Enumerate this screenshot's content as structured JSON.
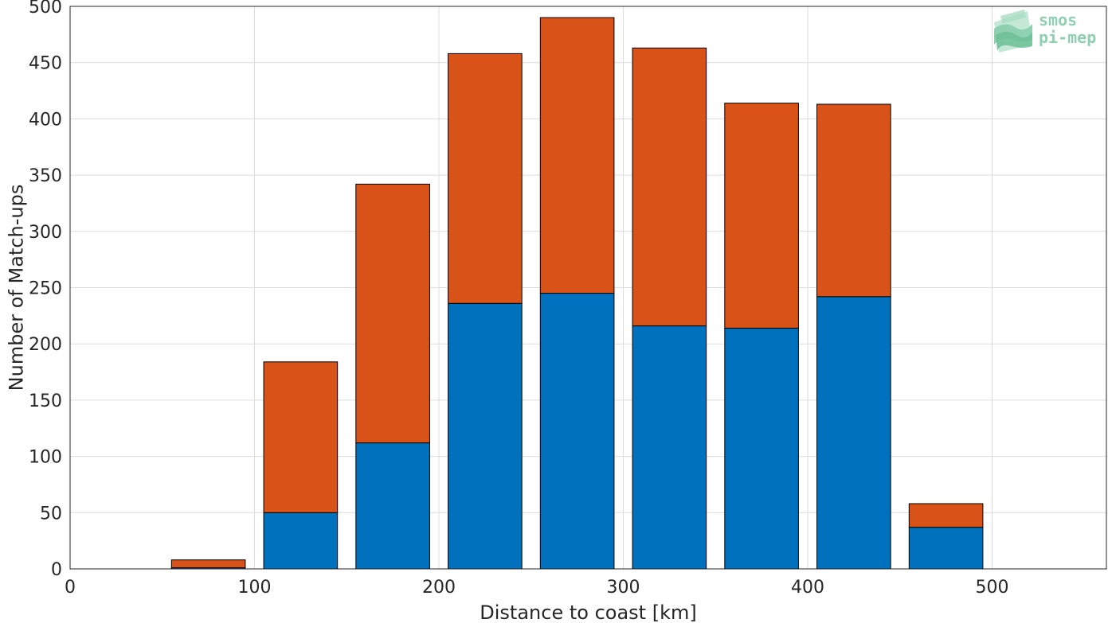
{
  "chart_data": {
    "type": "bar",
    "stacked": true,
    "x": [
      75,
      125,
      175,
      225,
      275,
      325,
      375,
      425,
      475
    ],
    "series": [
      {
        "values": [
          1,
          50,
          112,
          236,
          245,
          216,
          214,
          242,
          37
        ],
        "color": "#0072BD"
      },
      {
        "values": [
          7,
          134,
          230,
          222,
          245,
          247,
          200,
          171,
          21
        ],
        "color": "#D95319"
      }
    ],
    "xlabel": "Distance to coast [km]",
    "ylabel": "Number of Match-ups",
    "xlim": [
      0,
      562
    ],
    "ylim": [
      0,
      500
    ],
    "xticks": [
      0,
      100,
      200,
      300,
      400,
      500
    ],
    "yticks": [
      0,
      50,
      100,
      150,
      200,
      250,
      300,
      350,
      400,
      450,
      500
    ],
    "bar_width": 40,
    "grid": true,
    "legend": "none"
  },
  "logo": {
    "line1": "smos",
    "line2": "pi-mep",
    "color": "#8fd0b0"
  }
}
